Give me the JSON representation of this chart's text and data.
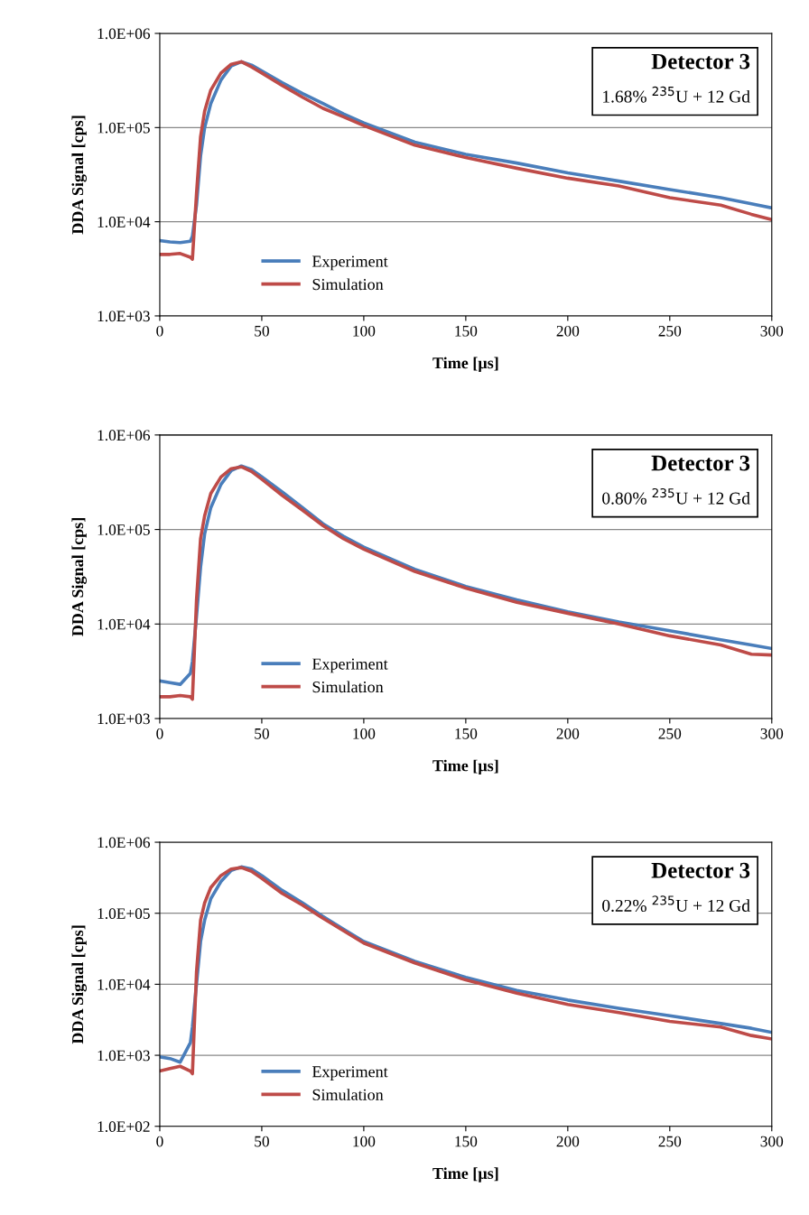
{
  "chart_data": [
    {
      "type": "line",
      "title": "Detector 3",
      "subtitle": "1.68% $^{235}$U + 12 Gd",
      "xlabel": "Time [µs]",
      "ylabel": "DDA Signal [cps]",
      "log": "y",
      "grid": "y",
      "legend": "bottom left",
      "line_style": "solid",
      "marker": "none",
      "x": [
        0,
        5,
        10,
        15,
        16,
        18,
        20,
        22,
        25,
        30,
        35,
        40,
        45,
        50,
        60,
        70,
        80,
        90,
        100,
        125,
        150,
        175,
        200,
        225,
        250,
        275,
        290,
        300
      ],
      "xlim": [
        0,
        300
      ],
      "xticks": [
        0,
        50,
        100,
        150,
        200,
        250,
        300
      ],
      "ylim": [
        1000,
        1000000
      ],
      "yticks": [
        {
          "value": 1000,
          "label": "1.0E+03"
        },
        {
          "value": 10000,
          "label": "1.0E+04"
        },
        {
          "value": 100000,
          "label": "1.0E+05"
        },
        {
          "value": 1000000,
          "label": "1.0E+06"
        }
      ],
      "series": [
        {
          "name": "Experiment",
          "color": "#4a7ebb",
          "values": [
            6300,
            6100,
            6000,
            6200,
            7000,
            15000,
            50000,
            100000,
            180000,
            320000,
            450000,
            500000,
            460000,
            400000,
            300000,
            230000,
            180000,
            140000,
            112000,
            70000,
            52000,
            42000,
            33000,
            27000,
            22000,
            18000,
            15500,
            14000
          ]
        },
        {
          "name": "Simulation",
          "color": "#be4b48",
          "values": [
            4500,
            4500,
            4600,
            4200,
            4000,
            20000,
            80000,
            150000,
            250000,
            380000,
            470000,
            500000,
            440000,
            380000,
            280000,
            210000,
            160000,
            130000,
            105000,
            65000,
            48000,
            37000,
            29000,
            24000,
            18000,
            15000,
            12000,
            10500
          ]
        }
      ]
    },
    {
      "type": "line",
      "title": "Detector 3",
      "subtitle": "0.80% $^{235}$U + 12 Gd",
      "xlabel": "Time [µs]",
      "ylabel": "DDA Signal [cps]",
      "log": "y",
      "grid": "y",
      "legend": "bottom left",
      "line_style": "solid",
      "marker": "none",
      "x": [
        0,
        5,
        10,
        15,
        16,
        18,
        20,
        22,
        25,
        30,
        35,
        40,
        45,
        50,
        60,
        70,
        80,
        90,
        100,
        125,
        150,
        175,
        200,
        225,
        250,
        275,
        290,
        300
      ],
      "xlim": [
        0,
        300
      ],
      "xticks": [
        0,
        50,
        100,
        150,
        200,
        250,
        300
      ],
      "ylim": [
        1000,
        1000000
      ],
      "yticks": [
        {
          "value": 1000,
          "label": "1.0E+03"
        },
        {
          "value": 10000,
          "label": "1.0E+04"
        },
        {
          "value": 100000,
          "label": "1.0E+05"
        },
        {
          "value": 1000000,
          "label": "1.0E+06"
        }
      ],
      "series": [
        {
          "name": "Experiment",
          "color": "#4a7ebb",
          "values": [
            2500,
            2400,
            2300,
            3000,
            4000,
            12000,
            40000,
            90000,
            170000,
            300000,
            420000,
            470000,
            430000,
            360000,
            250000,
            170000,
            115000,
            85000,
            65000,
            38000,
            25000,
            18000,
            13500,
            10500,
            8500,
            6800,
            6000,
            5500
          ]
        },
        {
          "name": "Simulation",
          "color": "#be4b48",
          "values": [
            1700,
            1700,
            1750,
            1700,
            1600,
            18000,
            80000,
            140000,
            240000,
            360000,
            440000,
            460000,
            410000,
            340000,
            230000,
            160000,
            110000,
            80000,
            62000,
            36000,
            24000,
            17000,
            13000,
            10000,
            7500,
            6000,
            4800,
            4700
          ]
        }
      ]
    },
    {
      "type": "line",
      "title": "Detector 3",
      "subtitle": "0.22% $^{235}$U + 12 Gd",
      "xlabel": "Time [µs]",
      "ylabel": "DDA Signal [cps]",
      "log": "y",
      "grid": "y",
      "legend": "bottom left",
      "line_style": "solid",
      "marker": "none",
      "x": [
        0,
        5,
        10,
        15,
        16,
        18,
        20,
        22,
        25,
        30,
        35,
        40,
        45,
        50,
        60,
        70,
        80,
        90,
        100,
        125,
        150,
        175,
        200,
        225,
        250,
        275,
        290,
        300
      ],
      "xlim": [
        0,
        300
      ],
      "xticks": [
        0,
        50,
        100,
        150,
        200,
        250,
        300
      ],
      "ylim": [
        100,
        1000000
      ],
      "yticks": [
        {
          "value": 100,
          "label": "1.0E+02"
        },
        {
          "value": 1000,
          "label": "1.0E+03"
        },
        {
          "value": 10000,
          "label": "1.0E+04"
        },
        {
          "value": 100000,
          "label": "1.0E+05"
        },
        {
          "value": 1000000,
          "label": "1.0E+06"
        }
      ],
      "series": [
        {
          "name": "Experiment",
          "color": "#4a7ebb",
          "values": [
            950,
            900,
            800,
            1500,
            2500,
            10000,
            40000,
            80000,
            160000,
            280000,
            400000,
            450000,
            420000,
            340000,
            210000,
            140000,
            90000,
            60000,
            40000,
            21000,
            12500,
            8200,
            6000,
            4600,
            3600,
            2800,
            2400,
            2100
          ]
        },
        {
          "name": "Simulation",
          "color": "#be4b48",
          "values": [
            600,
            650,
            700,
            600,
            550,
            15000,
            80000,
            140000,
            230000,
            340000,
            420000,
            440000,
            390000,
            310000,
            190000,
            130000,
            85000,
            57000,
            38000,
            20000,
            11500,
            7500,
            5200,
            4000,
            3000,
            2500,
            1900,
            1700
          ]
        }
      ]
    }
  ]
}
